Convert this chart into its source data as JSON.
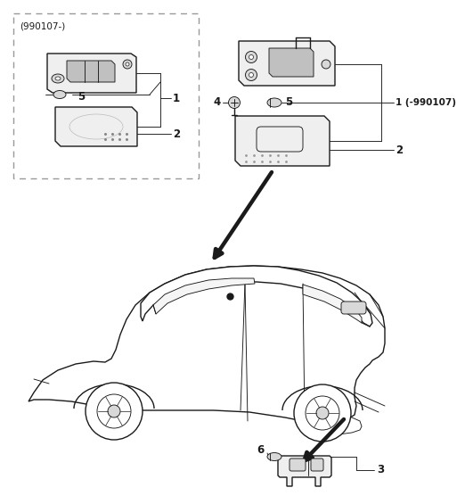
{
  "bg_color": "#ffffff",
  "lc": "#1a1a1a",
  "gray1": "#efefef",
  "gray2": "#d8d8d8",
  "gray3": "#c0c0c0",
  "lw_thin": 0.65,
  "lw_med": 1.0,
  "lw_thick": 3.2,
  "tag_left": "(990107-)",
  "tag_right": "1 (-990107)",
  "fs": 8.5,
  "fs_sm": 7.5
}
